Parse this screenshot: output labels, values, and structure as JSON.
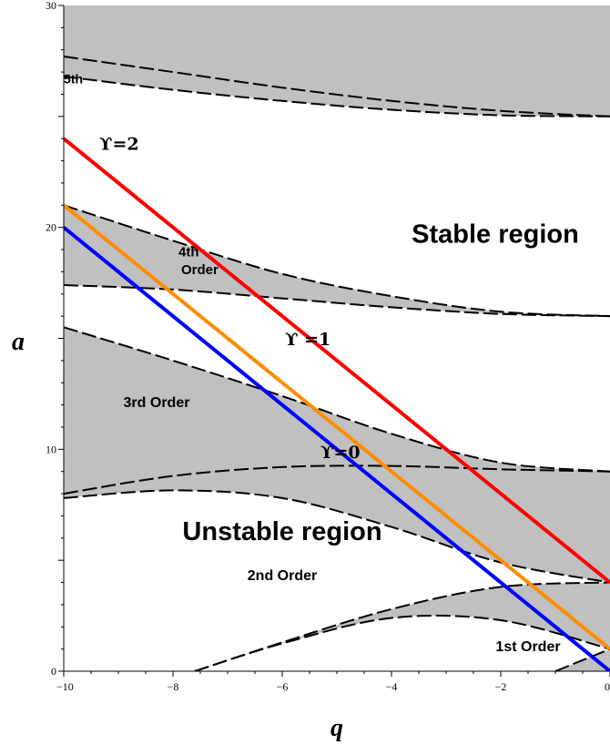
{
  "chart_data": {
    "type": "line",
    "title": "",
    "xlabel": "q",
    "ylabel": "a",
    "xlim": [
      -10,
      0
    ],
    "ylim": [
      0,
      30
    ],
    "x_ticks": [
      -10,
      -8,
      -6,
      -4,
      -2,
      0
    ],
    "y_ticks": [
      0,
      10,
      20,
      30
    ],
    "x_tick_labels": [
      "−10",
      "−8",
      "−6",
      "−4",
      "−2",
      "0"
    ],
    "y_tick_labels": [
      "0",
      "10",
      "20",
      "30"
    ],
    "background_color": "#c0c0c0",
    "stability_boundaries": [
      {
        "x": [
          -10,
          -8,
          -6,
          -4,
          -2,
          0
        ],
        "values": [
          27.7,
          27.0,
          26.3,
          25.7,
          25.25,
          25.0
        ]
      },
      {
        "x": [
          -10,
          -8,
          -6,
          -4,
          -2,
          0
        ],
        "values": [
          26.8,
          26.2,
          25.7,
          25.3,
          25.05,
          25.0
        ]
      },
      {
        "x": [
          -10,
          -8,
          -6,
          -4,
          -2,
          0
        ],
        "values": [
          21.0,
          19.4,
          17.9,
          16.9,
          16.2,
          16.0
        ]
      },
      {
        "x": [
          -10,
          -8,
          -6,
          -4,
          -2,
          0
        ],
        "values": [
          17.4,
          17.2,
          16.8,
          16.4,
          16.1,
          16.0
        ]
      },
      {
        "x": [
          -10,
          -8,
          -6,
          -4,
          -2,
          0
        ],
        "values": [
          15.5,
          14.0,
          12.4,
          10.7,
          9.4,
          9.0
        ]
      },
      {
        "x": [
          -10,
          -8,
          -6,
          -4,
          -2,
          0
        ],
        "values": [
          8.0,
          8.8,
          9.2,
          9.25,
          9.1,
          9.0
        ]
      },
      {
        "x": [
          -10,
          -8,
          -6,
          -4,
          -2,
          0
        ],
        "values": [
          7.8,
          8.15,
          7.8,
          6.5,
          4.9,
          4.0
        ]
      },
      {
        "x": [
          -7.6,
          -6,
          -4,
          -2,
          0
        ],
        "values": [
          0.0,
          1.3,
          2.8,
          3.8,
          4.0
        ]
      },
      {
        "x": [
          -7.6,
          -6,
          -4,
          -2,
          0
        ],
        "values": [
          0.0,
          1.25,
          2.4,
          2.3,
          1.0
        ]
      },
      {
        "x": [
          -1.0,
          -0.5,
          0
        ],
        "values": [
          0.0,
          0.5,
          1.0
        ]
      }
    ],
    "series": [
      {
        "name": "ϒ=2",
        "color": "#ff0000",
        "x": [
          -10,
          0
        ],
        "values": [
          24,
          4
        ]
      },
      {
        "name": "ϒ=1",
        "color": "#ff8c00",
        "x": [
          -10,
          0
        ],
        "values": [
          21,
          1
        ]
      },
      {
        "name": "ϒ=0",
        "color": "#0000ff",
        "x": [
          -10,
          0
        ],
        "values": [
          20,
          0
        ]
      }
    ],
    "annotations": [
      {
        "text": "5th",
        "x": -10,
        "y": 26.5,
        "size": 14
      },
      {
        "text": "ϒ=2",
        "x": -9.35,
        "y": 23.5,
        "size": 19
      },
      {
        "text": "Stable region",
        "x": -2.1,
        "y": 19.3,
        "size": 29
      },
      {
        "text": "4th",
        "x": -7.9,
        "y": 18.7,
        "size": 15
      },
      {
        "text": "Order",
        "x": -7.85,
        "y": 17.9,
        "size": 15
      },
      {
        "text": "ϒ =1",
        "x": -5.95,
        "y": 14.7,
        "size": 19
      },
      {
        "text": "3rd Order",
        "x": -8.3,
        "y": 11.9,
        "size": 16
      },
      {
        "text": "ϒ=0",
        "x": -5.3,
        "y": 9.6,
        "size": 19
      },
      {
        "text": "Unstable region",
        "x": -6.0,
        "y": 5.9,
        "size": 29
      },
      {
        "text": "2nd Order",
        "x": -6.0,
        "y": 4.1,
        "size": 16
      },
      {
        "text": "1st Order",
        "x": -1.5,
        "y": 0.9,
        "size": 16
      }
    ]
  }
}
